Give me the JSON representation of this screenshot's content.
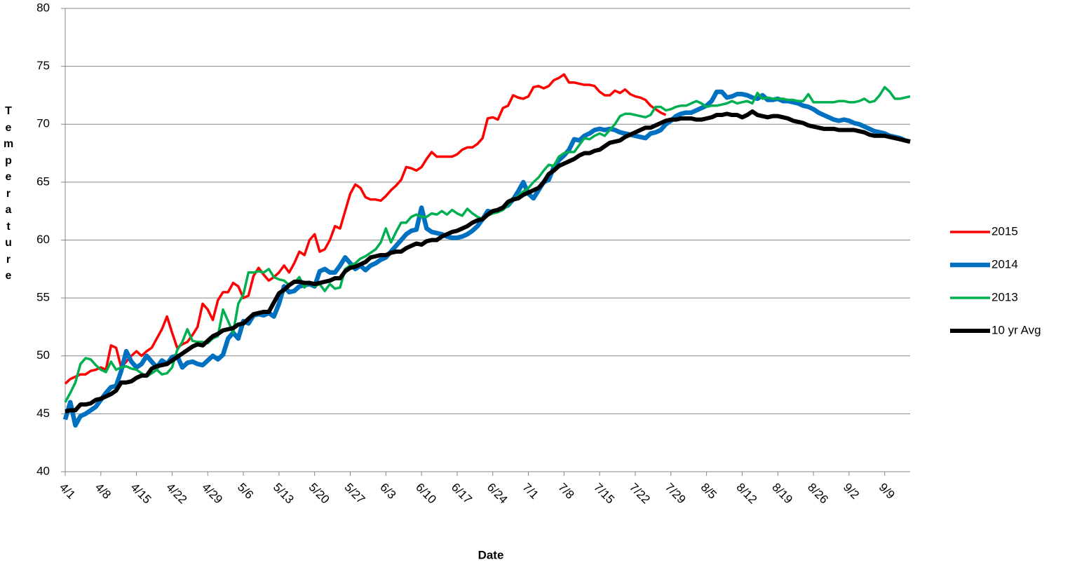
{
  "chart_data": {
    "type": "line",
    "x_label": "Date",
    "y_label": "Temperature",
    "grid": true,
    "legend": "right",
    "ylim": [
      40,
      80
    ],
    "yticks": [
      40,
      45,
      50,
      55,
      60,
      65,
      70,
      75,
      80
    ],
    "categories": [
      "4/1",
      null,
      null,
      null,
      null,
      null,
      null,
      "4/8",
      null,
      null,
      null,
      null,
      null,
      null,
      "4/15",
      null,
      null,
      null,
      null,
      null,
      null,
      "4/22",
      null,
      null,
      null,
      null,
      null,
      null,
      "4/29",
      null,
      null,
      null,
      null,
      null,
      null,
      "5/6",
      null,
      null,
      null,
      null,
      null,
      null,
      "5/13",
      null,
      null,
      null,
      null,
      null,
      null,
      "5/20",
      null,
      null,
      null,
      null,
      null,
      null,
      "5/27",
      null,
      null,
      null,
      null,
      null,
      null,
      "6/3",
      null,
      null,
      null,
      null,
      null,
      null,
      "6/10",
      null,
      null,
      null,
      null,
      null,
      null,
      "6/17",
      null,
      null,
      null,
      null,
      null,
      null,
      "6/24",
      null,
      null,
      null,
      null,
      null,
      null,
      "7/1",
      null,
      null,
      null,
      null,
      null,
      null,
      "7/8",
      null,
      null,
      null,
      null,
      null,
      null,
      "7/15",
      null,
      null,
      null,
      null,
      null,
      null,
      "7/22",
      null,
      null,
      null,
      null,
      null,
      null,
      "7/29",
      null,
      null,
      null,
      null,
      null,
      null,
      "8/5",
      null,
      null,
      null,
      null,
      null,
      null,
      "8/12",
      null,
      null,
      null,
      null,
      null,
      null,
      "8/19",
      null,
      null,
      null,
      null,
      null,
      null,
      "8/26",
      null,
      null,
      null,
      null,
      null,
      null,
      "9/2",
      null,
      null,
      null,
      null,
      null,
      null,
      "9/9",
      null,
      null,
      null,
      null,
      null
    ],
    "series": [
      {
        "name": "2015",
        "color": "#ff0000",
        "values": [
          47.6,
          48.0,
          48.2,
          48.4,
          48.4,
          48.7,
          48.8,
          49.0,
          48.8,
          50.9,
          50.7,
          49.0,
          49.5,
          50.0,
          50.4,
          50.0,
          50.4,
          50.7,
          51.5,
          52.3,
          53.4,
          52.0,
          50.7,
          51.0,
          51.2,
          51.8,
          52.5,
          54.5,
          54.0,
          53.1,
          54.8,
          55.5,
          55.5,
          56.3,
          56.0,
          55.0,
          55.2,
          56.9,
          57.6,
          57.0,
          56.5,
          56.8,
          57.2,
          57.8,
          57.2,
          58.0,
          59.0,
          58.7,
          60.0,
          60.5,
          59.0,
          59.2,
          60.0,
          61.2,
          61.0,
          62.5,
          64.0,
          64.8,
          64.5,
          63.7,
          63.5,
          63.5,
          63.4,
          63.8,
          64.3,
          64.7,
          65.2,
          66.3,
          66.2,
          66.0,
          66.3,
          67.0,
          67.6,
          67.2,
          67.2,
          67.2,
          67.2,
          67.4,
          67.8,
          68.0,
          68.0,
          68.3,
          68.8,
          70.5,
          70.6,
          70.4,
          71.4,
          71.6,
          72.5,
          72.3,
          72.2,
          72.4,
          73.2,
          73.3,
          73.1,
          73.3,
          73.8,
          74.0,
          74.3,
          73.6,
          73.6,
          73.5,
          73.4,
          73.4,
          73.3,
          72.8,
          72.5,
          72.5,
          72.9,
          72.7,
          73.0,
          72.6,
          72.4,
          72.3,
          72.1,
          71.6,
          71.3,
          71.0,
          70.8,
          null,
          null,
          null,
          null,
          null,
          null,
          null,
          null,
          null,
          null,
          null,
          null,
          null,
          null,
          null,
          null,
          null,
          null,
          null,
          null,
          null,
          null,
          null,
          null,
          null,
          null,
          null,
          null,
          null,
          null,
          null,
          null,
          null,
          null,
          null,
          null,
          null,
          null,
          null,
          null,
          null,
          null,
          null,
          null,
          null,
          null,
          null,
          null
        ]
      },
      {
        "name": "2014",
        "color": "#0070c0",
        "values": [
          44.5,
          46.0,
          44.0,
          44.8,
          45.0,
          45.3,
          45.6,
          46.2,
          46.8,
          47.3,
          47.4,
          48.7,
          50.4,
          49.5,
          49.0,
          49.3,
          50.0,
          49.5,
          49.0,
          49.6,
          49.3,
          49.9,
          50.0,
          49.0,
          49.4,
          49.5,
          49.3,
          49.2,
          49.6,
          50.0,
          49.7,
          50.1,
          51.5,
          52.0,
          51.5,
          53.0,
          52.8,
          53.5,
          53.6,
          53.5,
          53.7,
          53.4,
          54.5,
          56.0,
          55.5,
          55.6,
          56.0,
          56.1,
          56.2,
          56.0,
          57.3,
          57.5,
          57.2,
          57.2,
          57.8,
          58.5,
          58.0,
          57.5,
          57.8,
          57.4,
          57.8,
          58.0,
          58.3,
          58.5,
          59.0,
          59.5,
          60.0,
          60.5,
          60.8,
          60.9,
          62.8,
          61.0,
          60.7,
          60.6,
          60.5,
          60.3,
          60.2,
          60.2,
          60.3,
          60.5,
          60.8,
          61.2,
          61.8,
          62.5,
          62.4,
          62.6,
          62.8,
          63.0,
          63.5,
          64.2,
          65.0,
          64.0,
          63.6,
          64.3,
          65.0,
          65.2,
          66.3,
          66.9,
          67.3,
          67.8,
          68.7,
          68.6,
          69.0,
          69.2,
          69.5,
          69.6,
          69.5,
          69.6,
          69.5,
          69.3,
          69.2,
          69.1,
          69.0,
          68.9,
          68.8,
          69.2,
          69.3,
          69.5,
          70.0,
          70.3,
          70.7,
          70.9,
          71.0,
          71.0,
          71.2,
          71.4,
          71.6,
          72.0,
          72.8,
          72.8,
          72.3,
          72.4,
          72.6,
          72.6,
          72.5,
          72.3,
          72.2,
          72.5,
          72.1,
          72.1,
          72.2,
          72.0,
          72.0,
          71.9,
          71.8,
          71.6,
          71.5,
          71.3,
          71.0,
          70.8,
          70.6,
          70.4,
          70.3,
          70.4,
          70.3,
          70.1,
          70.0,
          69.8,
          69.6,
          69.4,
          69.3,
          69.2,
          69.0,
          68.9,
          68.8,
          68.6,
          68.5
        ]
      },
      {
        "name": "2013",
        "color": "#00b050",
        "values": [
          46.0,
          46.8,
          47.7,
          49.3,
          49.8,
          49.7,
          49.2,
          48.8,
          48.6,
          49.5,
          48.8,
          49.0,
          49.1,
          48.9,
          48.8,
          48.5,
          48.2,
          48.5,
          48.8,
          48.4,
          48.5,
          49.0,
          50.5,
          51.2,
          52.3,
          51.3,
          51.2,
          51.2,
          51.1,
          51.5,
          51.7,
          54.0,
          53.0,
          52.0,
          54.5,
          55.3,
          57.2,
          57.2,
          57.3,
          57.2,
          57.5,
          56.8,
          56.6,
          56.5,
          56.1,
          56.3,
          56.8,
          55.9,
          56.4,
          56.0,
          56.2,
          55.6,
          56.2,
          55.8,
          55.9,
          57.5,
          57.8,
          58.0,
          58.4,
          58.6,
          58.9,
          59.2,
          59.8,
          61.0,
          59.8,
          60.7,
          61.5,
          61.5,
          62.0,
          62.2,
          62.0,
          62.0,
          62.3,
          62.2,
          62.5,
          62.2,
          62.6,
          62.3,
          62.1,
          62.7,
          62.3,
          62.0,
          61.8,
          62.1,
          62.3,
          62.4,
          62.6,
          63.0,
          63.5,
          63.8,
          64.2,
          64.5,
          65.0,
          65.4,
          66.0,
          66.5,
          66.4,
          67.2,
          67.5,
          67.6,
          67.6,
          68.2,
          68.8,
          68.7,
          69.0,
          69.2,
          69.0,
          69.5,
          70.0,
          70.7,
          70.9,
          70.9,
          70.8,
          70.7,
          70.6,
          70.8,
          71.5,
          71.5,
          71.2,
          71.3,
          71.5,
          71.6,
          71.6,
          71.8,
          72.0,
          71.8,
          71.5,
          71.6,
          71.6,
          71.7,
          71.8,
          72.0,
          71.8,
          71.9,
          72.0,
          71.8,
          72.7,
          72.2,
          72.3,
          72.2,
          72.2,
          72.2,
          72.1,
          72.1,
          72.0,
          72.0,
          72.6,
          71.9,
          71.9,
          71.9,
          71.9,
          71.9,
          72.0,
          72.0,
          71.9,
          71.9,
          72.0,
          72.2,
          71.9,
          72.0,
          72.5,
          73.2,
          72.8,
          72.2,
          72.2,
          72.3,
          72.4
        ]
      },
      {
        "name": "10 yr Avg",
        "color": "#000000",
        "values": [
          45.2,
          45.3,
          45.3,
          45.8,
          45.8,
          45.9,
          46.2,
          46.3,
          46.5,
          46.7,
          47.0,
          47.7,
          47.7,
          47.8,
          48.1,
          48.3,
          48.3,
          48.9,
          49.1,
          49.2,
          49.3,
          49.6,
          49.9,
          50.2,
          50.5,
          50.8,
          51.0,
          50.9,
          51.3,
          51.7,
          51.9,
          52.2,
          52.3,
          52.4,
          52.7,
          52.8,
          53.2,
          53.6,
          53.7,
          53.8,
          53.8,
          54.6,
          55.4,
          55.7,
          56.1,
          56.4,
          56.4,
          56.3,
          56.3,
          56.2,
          56.3,
          56.4,
          56.5,
          56.7,
          56.7,
          57.3,
          57.6,
          57.7,
          57.9,
          58.1,
          58.5,
          58.6,
          58.7,
          58.7,
          58.9,
          59.0,
          59.0,
          59.3,
          59.5,
          59.7,
          59.6,
          59.9,
          60.0,
          60.0,
          60.3,
          60.5,
          60.7,
          60.8,
          61.0,
          61.2,
          61.5,
          61.7,
          61.8,
          62.2,
          62.5,
          62.6,
          62.8,
          63.3,
          63.5,
          63.6,
          63.9,
          64.1,
          64.3,
          64.5,
          65.0,
          65.7,
          66.0,
          66.4,
          66.6,
          66.8,
          67.0,
          67.3,
          67.5,
          67.5,
          67.7,
          67.8,
          68.1,
          68.4,
          68.5,
          68.6,
          68.9,
          69.1,
          69.3,
          69.5,
          69.7,
          69.7,
          69.9,
          70.1,
          70.3,
          70.4,
          70.4,
          70.5,
          70.5,
          70.5,
          70.4,
          70.4,
          70.5,
          70.6,
          70.8,
          70.8,
          70.9,
          70.8,
          70.8,
          70.6,
          70.8,
          71.1,
          70.8,
          70.7,
          70.6,
          70.7,
          70.7,
          70.6,
          70.5,
          70.3,
          70.2,
          70.1,
          69.9,
          69.8,
          69.7,
          69.6,
          69.6,
          69.6,
          69.5,
          69.5,
          69.5,
          69.5,
          69.4,
          69.3,
          69.1,
          69.0,
          69.0,
          69.0,
          68.9,
          68.8,
          68.7,
          68.6,
          68.5
        ]
      }
    ]
  }
}
